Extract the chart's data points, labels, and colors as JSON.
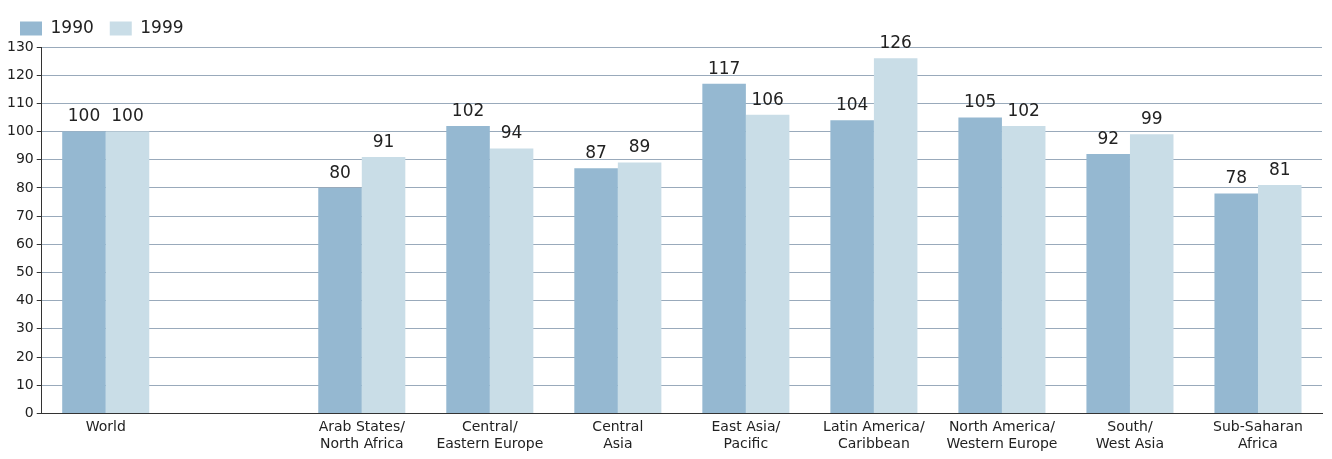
{
  "chart_data": {
    "type": "bar",
    "categories": [
      "World",
      null,
      "Arab States/\nNorth Africa",
      "Central/\nEastern Europe",
      "Central\nAsia",
      "East Asia/\nPacific",
      "Latin America/\nCaribbean",
      "North America/\nWestern Europe",
      "South/\nWest Asia",
      "Sub-Saharan\nAfrica"
    ],
    "series": [
      {
        "name": "1990",
        "color": "#95b8d1",
        "values": [
          100,
          null,
          80,
          102,
          87,
          117,
          104,
          105,
          92,
          78
        ]
      },
      {
        "name": "1999",
        "color": "#c9dde7",
        "values": [
          100,
          null,
          91,
          94,
          89,
          106,
          126,
          102,
          99,
          81
        ]
      }
    ],
    "ylim": [
      0,
      130
    ],
    "yticks": [
      0,
      10,
      20,
      30,
      40,
      50,
      60,
      70,
      80,
      90,
      100,
      110,
      120,
      130
    ],
    "grid": "y",
    "legend": "top left",
    "data_labels": true
  }
}
